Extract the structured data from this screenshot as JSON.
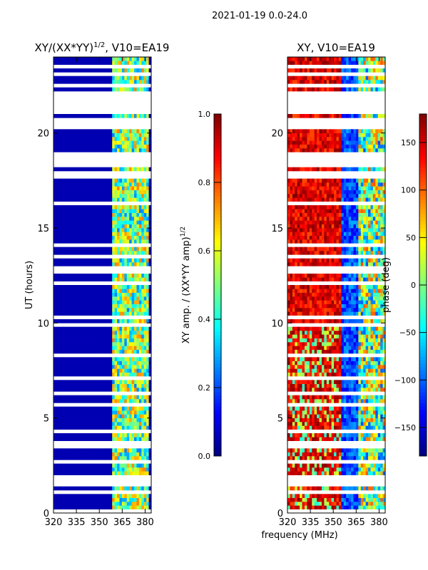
{
  "chart_data": [
    {
      "type": "heatmap",
      "suptitle": "2021-01-19 0.0-24.0",
      "title": "XY/(XX*YY)^1/2, V10=EA19",
      "title_main": "XY/(XX*YY)",
      "title_sup": "1/2",
      "title_tail": ", V10=EA19",
      "xlabel": "frequency (MHz)",
      "ylabel": "UT (hours)",
      "xlim": [
        320,
        384
      ],
      "ylim": [
        0,
        24
      ],
      "xticks": [
        "320",
        "335",
        "350",
        "365",
        "380"
      ],
      "xtick_values": [
        320,
        335,
        350,
        365,
        380
      ],
      "yticks": [
        "0",
        "5",
        "10",
        "15",
        "20"
      ],
      "ytick_values": [
        0,
        5,
        10,
        15,
        20
      ],
      "colorbar": {
        "label_main": "XY amp. / (XX*YY amp)",
        "label_sup": "1/2",
        "range": [
          0.0,
          1.0
        ],
        "ticks": [
          "0.0",
          "0.2",
          "0.4",
          "0.6",
          "0.8",
          "1.0"
        ],
        "tick_values": [
          0,
          0.2,
          0.4,
          0.6,
          0.8,
          1.0
        ],
        "colormap": "jet"
      }
    },
    {
      "type": "heatmap",
      "title": "XY, V10=EA19",
      "xlim": [
        320,
        384
      ],
      "ylim": [
        0,
        24
      ],
      "xticks": [
        "320",
        "335",
        "350",
        "365",
        "380"
      ],
      "xtick_values": [
        320,
        335,
        350,
        365,
        380
      ],
      "yticks": [
        "0",
        "5",
        "10",
        "15",
        "20"
      ],
      "ytick_values": [
        0,
        5,
        10,
        15,
        20
      ],
      "colorbar": {
        "label": "phase (deg)",
        "range": [
          -180,
          180
        ],
        "ticks": [
          "150",
          "100",
          "50",
          "0",
          "−50",
          "−100",
          "−150"
        ],
        "tick_values": [
          150,
          100,
          50,
          0,
          -50,
          -100,
          -150
        ],
        "colormap": "jet"
      }
    }
  ]
}
